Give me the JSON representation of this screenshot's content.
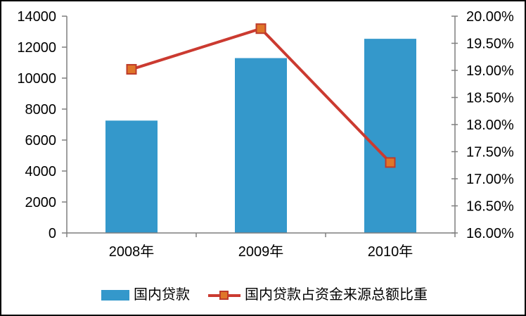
{
  "chart_data": {
    "type": "bar",
    "subtype": "combo-bar-line-dual-axis",
    "title": "",
    "categories": [
      "2008年",
      "2009年",
      "2010年"
    ],
    "series": [
      {
        "name": "国内贷款",
        "type": "bar",
        "axis": "left",
        "values": [
          7257,
          11293,
          12540
        ],
        "color": "#3498CB"
      },
      {
        "name": "国内贷款占资金来源总额比重",
        "type": "line",
        "axis": "right",
        "values": [
          19.02,
          19.77,
          17.3
        ],
        "unit": "%",
        "line_color": "#CB3A30",
        "marker": "square",
        "marker_fill": "#DF7629",
        "marker_stroke": "#BE3B2A"
      }
    ],
    "left_axis": {
      "range": [
        0,
        14000
      ],
      "step": 2000,
      "tick_labels": [
        "0",
        "2000",
        "4000",
        "6000",
        "8000",
        "10000",
        "12000",
        "14000"
      ]
    },
    "right_axis": {
      "range": [
        16,
        20
      ],
      "step": 0.5,
      "tick_labels": [
        "16.00%",
        "16.50%",
        "17.00%",
        "17.50%",
        "18.00%",
        "18.50%",
        "19.00%",
        "19.50%",
        "20.00%"
      ]
    },
    "xlabel": "",
    "ylabel": "",
    "grid": false,
    "legend_position": "bottom",
    "colors": {
      "bar": "#3498CB",
      "line": "#CB3A30",
      "marker_fill": "#DF7629",
      "marker_stroke": "#BE3B2A",
      "axis": "#7F7F7F",
      "text": "#000000",
      "background": "#FFFFFF",
      "frame": "#000000"
    }
  },
  "legend": {
    "items": [
      {
        "label": "国内贷款",
        "swatch": "bar"
      },
      {
        "label": "国内贷款占资金来源总额比重",
        "swatch": "line-marker"
      }
    ]
  }
}
